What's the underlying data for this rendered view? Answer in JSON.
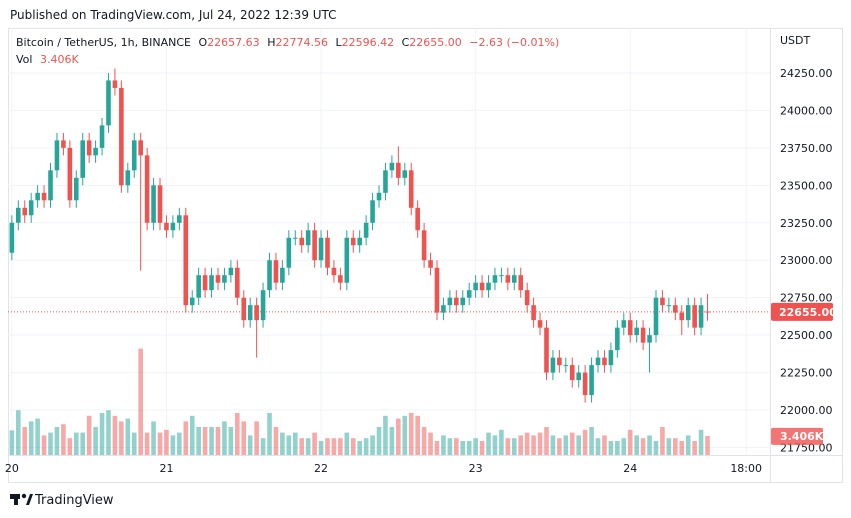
{
  "published": "Published on TradingView.com, Jul 24, 2022 12:39 UTC",
  "legend": {
    "symbol": "Bitcoin / TetherUS, 1h, BINANCE",
    "open_label": "O",
    "open": "22657.63",
    "high_label": "H",
    "high": "22774.56",
    "low_label": "L",
    "low": "22596.42",
    "close_label": "C",
    "close": "22655.00",
    "change": "−2.63 (−0.01%)",
    "volume_label": "Vol",
    "volume": "3.406K"
  },
  "currency": "USDT",
  "brand": "TradingView",
  "chart_data": {
    "type": "candlestick",
    "up_color": "#26a69a",
    "down_color": "#ef5350",
    "grid": true,
    "xlim": [
      -0.6,
      117.7
    ],
    "xticks": [
      {
        "value": 0,
        "label": "20"
      },
      {
        "value": 24,
        "label": "21"
      },
      {
        "value": 48,
        "label": "22"
      },
      {
        "value": 72,
        "label": "23"
      },
      {
        "value": 96,
        "label": "24"
      },
      {
        "value": 114,
        "label": "18:00"
      }
    ],
    "ylim": [
      21700,
      24550
    ],
    "yticks": [
      {
        "value": 21750,
        "label": "21750.00"
      },
      {
        "value": 22000,
        "label": "22000.00"
      },
      {
        "value": 22250,
        "label": "22250.00"
      },
      {
        "value": 22500,
        "label": "22500.00"
      },
      {
        "value": 22750,
        "label": "22750.00"
      },
      {
        "value": 23000,
        "label": "23000.00"
      },
      {
        "value": 23250,
        "label": "23250.00"
      },
      {
        "value": 23500,
        "label": "23500.00"
      },
      {
        "value": 23750,
        "label": "23750.00"
      },
      {
        "value": 24000,
        "label": "24000.00"
      },
      {
        "value": 24250,
        "label": "24250.00"
      }
    ],
    "x": [
      0,
      1,
      2,
      3,
      4,
      5,
      6,
      7,
      8,
      9,
      10,
      11,
      12,
      13,
      14,
      15,
      16,
      17,
      18,
      19,
      20,
      21,
      22,
      23,
      24,
      25,
      26,
      27,
      28,
      29,
      30,
      31,
      32,
      33,
      34,
      35,
      36,
      37,
      38,
      39,
      40,
      41,
      42,
      43,
      44,
      45,
      46,
      47,
      48,
      49,
      50,
      51,
      52,
      53,
      54,
      55,
      56,
      57,
      58,
      59,
      60,
      61,
      62,
      63,
      64,
      65,
      66,
      67,
      68,
      69,
      70,
      71,
      72,
      73,
      74,
      75,
      76,
      77,
      78,
      79,
      80,
      81,
      82,
      83,
      84,
      85,
      86,
      87,
      88,
      89,
      90,
      91,
      92,
      93,
      94,
      95,
      96,
      97,
      98,
      99,
      100,
      101,
      102,
      103,
      104,
      105,
      106,
      107,
      108
    ],
    "open": [
      23050,
      23250,
      23350,
      23300,
      23400,
      23450,
      23400,
      23600,
      23800,
      23750,
      23400,
      23550,
      23800,
      23700,
      23750,
      23900,
      24200,
      24150,
      23500,
      23600,
      23800,
      23700,
      23250,
      23500,
      23250,
      23200,
      23250,
      23300,
      22700,
      22750,
      22900,
      22800,
      22900,
      22850,
      22900,
      22950,
      22750,
      22600,
      22700,
      22600,
      22800,
      23000,
      22850,
      22950,
      23150,
      23150,
      23100,
      23200,
      23000,
      23150,
      22950,
      22900,
      22850,
      23150,
      23100,
      23150,
      23250,
      23400,
      23450,
      23600,
      23650,
      23550,
      23600,
      23350,
      23200,
      23000,
      22950,
      22650,
      22700,
      22750,
      22700,
      22750,
      22800,
      22850,
      22800,
      22850,
      22900,
      22900,
      22850,
      22900,
      22800,
      22700,
      22600,
      22550,
      22250,
      22350,
      22300,
      22300,
      22200,
      22250,
      22100,
      22300,
      22350,
      22300,
      22400,
      22550,
      22600,
      22500,
      22550,
      22450,
      22500,
      22750,
      22700,
      22700,
      22650,
      22600,
      22700,
      22550,
      22657.63
    ],
    "high": [
      23300,
      23400,
      23400,
      23450,
      23500,
      23500,
      23650,
      23850,
      23850,
      23800,
      23600,
      23850,
      23850,
      23800,
      23950,
      24250,
      24280,
      24200,
      23650,
      23850,
      23850,
      23750,
      23550,
      23550,
      23300,
      23300,
      23350,
      23350,
      22800,
      22950,
      22950,
      22950,
      22950,
      22950,
      23000,
      23000,
      22800,
      22750,
      22750,
      22850,
      23050,
      23050,
      23000,
      23200,
      23200,
      23200,
      23250,
      23250,
      23200,
      23200,
      23000,
      22950,
      23200,
      23200,
      23200,
      23300,
      23450,
      23500,
      23650,
      23700,
      23760,
      23650,
      23650,
      23400,
      23250,
      23050,
      23000,
      22750,
      22800,
      22800,
      22800,
      22850,
      22900,
      22900,
      22900,
      22950,
      22950,
      22950,
      22950,
      22950,
      22850,
      22750,
      22650,
      22600,
      22400,
      22400,
      22350,
      22350,
      22300,
      22300,
      22350,
      22400,
      22400,
      22450,
      22600,
      22650,
      22650,
      22600,
      22600,
      22550,
      22800,
      22800,
      22750,
      22750,
      22700,
      22750,
      22750,
      22750,
      22774.56
    ],
    "low": [
      23000,
      23200,
      23250,
      23250,
      23350,
      23350,
      23350,
      23550,
      23700,
      23350,
      23350,
      23500,
      23650,
      23650,
      23700,
      23850,
      24100,
      23450,
      23450,
      23550,
      22930,
      23200,
      23200,
      23200,
      23150,
      23150,
      23200,
      22650,
      22650,
      22700,
      22750,
      22750,
      22800,
      22800,
      22850,
      22700,
      22550,
      22550,
      22350,
      22550,
      22750,
      22800,
      22800,
      22900,
      23100,
      23050,
      23050,
      22950,
      22950,
      22900,
      22850,
      22800,
      22800,
      23050,
      23050,
      23100,
      23200,
      23350,
      23400,
      23550,
      23500,
      23500,
      23300,
      23150,
      22950,
      22900,
      22600,
      22600,
      22650,
      22650,
      22650,
      22700,
      22750,
      22750,
      22750,
      22800,
      22850,
      22800,
      22800,
      22750,
      22650,
      22550,
      22500,
      22200,
      22200,
      22250,
      22250,
      22150,
      22150,
      22050,
      22050,
      22250,
      22250,
      22250,
      22350,
      22500,
      22450,
      22450,
      22400,
      22250,
      22450,
      22650,
      22650,
      22600,
      22500,
      22550,
      22500,
      22500,
      22596.42
    ],
    "close": [
      23250,
      23350,
      23300,
      23400,
      23450,
      23400,
      23600,
      23800,
      23750,
      23400,
      23550,
      23800,
      23700,
      23750,
      23900,
      24200,
      24150,
      23500,
      23600,
      23800,
      23700,
      23250,
      23500,
      23250,
      23200,
      23250,
      23300,
      22700,
      22750,
      22900,
      22800,
      22900,
      22850,
      22900,
      22950,
      22750,
      22600,
      22700,
      22600,
      22800,
      23000,
      22850,
      22950,
      23150,
      23150,
      23100,
      23200,
      23000,
      23150,
      22950,
      22900,
      22850,
      23150,
      23100,
      23150,
      23250,
      23400,
      23450,
      23600,
      23650,
      23550,
      23600,
      23350,
      23200,
      23000,
      22950,
      22650,
      22700,
      22750,
      22700,
      22750,
      22800,
      22850,
      22800,
      22850,
      22900,
      22900,
      22850,
      22900,
      22800,
      22700,
      22600,
      22550,
      22250,
      22350,
      22300,
      22300,
      22200,
      22250,
      22100,
      22300,
      22350,
      22300,
      22400,
      22550,
      22600,
      22500,
      22550,
      22450,
      22500,
      22750,
      22700,
      22700,
      22650,
      22600,
      22700,
      22550,
      22700,
      22655
    ],
    "volume": [
      4.4,
      8,
      5,
      6,
      6.5,
      3.5,
      4,
      5,
      5.5,
      3,
      4,
      4,
      7,
      5,
      7.5,
      8,
      7,
      6,
      6.5,
      4,
      19,
      4,
      6,
      4,
      4.5,
      3.5,
      4,
      6,
      7,
      5,
      5,
      5,
      5,
      6,
      5,
      7.5,
      6,
      3.5,
      6,
      3,
      7.5,
      5,
      4,
      3.5,
      4,
      3,
      3,
      4,
      2.5,
      3,
      3,
      3,
      4,
      3,
      2.5,
      3,
      3.5,
      5,
      7,
      5,
      6.5,
      7,
      7.5,
      7,
      5,
      4,
      2.5,
      3.5,
      3,
      3,
      2.5,
      2.5,
      3,
      2.5,
      4,
      3.5,
      4.5,
      3,
      3,
      3.5,
      4,
      3.5,
      4,
      5,
      3.5,
      3,
      3.5,
      4,
      3.5,
      4.5,
      5,
      3,
      3.5,
      2.5,
      2.5,
      3,
      4.5,
      3.5,
      3,
      3.5,
      2.5,
      5,
      3,
      3,
      2.5,
      3.5,
      2.5,
      4.5,
      3.406
    ],
    "last_price_label": "22655.00",
    "last_volume_label": "3.406K"
  }
}
